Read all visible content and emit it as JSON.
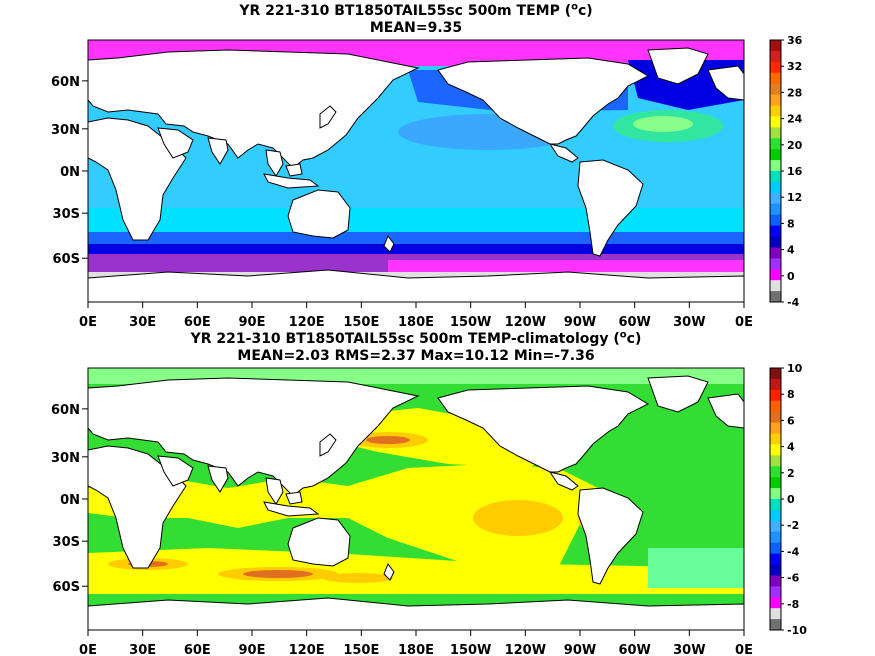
{
  "panels": [
    {
      "title_a": "YR 221-310 BT1850TAIL55sc 500m TEMP (",
      "title_unit": "o",
      "title_b": "c)",
      "stats": "MEAN=9.35",
      "colorbar_labels": [
        "36",
        "32",
        "28",
        "24",
        "20",
        "16",
        "12",
        "8",
        "4",
        "0",
        "-4"
      ],
      "colorbar_colors": [
        "#a01010",
        "#d02020",
        "#ff2800",
        "#ff6a00",
        "#e08020",
        "#ffa020",
        "#ffd000",
        "#ffff00",
        "#a0e040",
        "#30e030",
        "#00cc00",
        "#80ff80",
        "#00e0c0",
        "#00ccff",
        "#40b0ff",
        "#2090ff",
        "#1060ff",
        "#0000ff",
        "#0000c0",
        "#8000c0",
        "#a030ff",
        "#ff00ff",
        "#e0e0e0",
        "#707070"
      ]
    },
    {
      "title_a": "YR 221-310 BT1850TAIL55sc 500m TEMP-climatology (",
      "title_unit": "o",
      "title_b": "c)",
      "stats": "MEAN=2.03   RMS=2.37   Max=10.12   Min=-7.36",
      "colorbar_labels": [
        "10",
        "8",
        "6",
        "4",
        "2",
        "0",
        "-2",
        "-4",
        "-6",
        "-8",
        "-10"
      ],
      "colorbar_colors": [
        "#801010",
        "#c01818",
        "#ff2000",
        "#ff6000",
        "#e07020",
        "#ffa020",
        "#ffd000",
        "#ffff00",
        "#a0e040",
        "#30e030",
        "#00cc00",
        "#80ff80",
        "#00e0c0",
        "#00ccff",
        "#40b0ff",
        "#2090ff",
        "#1060ff",
        "#0000ff",
        "#0000c0",
        "#8000c0",
        "#a030ff",
        "#ff00ff",
        "#e0e0e0",
        "#707070"
      ]
    }
  ],
  "lat_labels": [
    "60N",
    "30N",
    "0N",
    "30S",
    "60S"
  ],
  "lon_labels": [
    "0E",
    "30E",
    "60E",
    "90E",
    "120E",
    "150E",
    "180E",
    "150W",
    "120W",
    "90W",
    "60W",
    "30W",
    "0E"
  ]
}
